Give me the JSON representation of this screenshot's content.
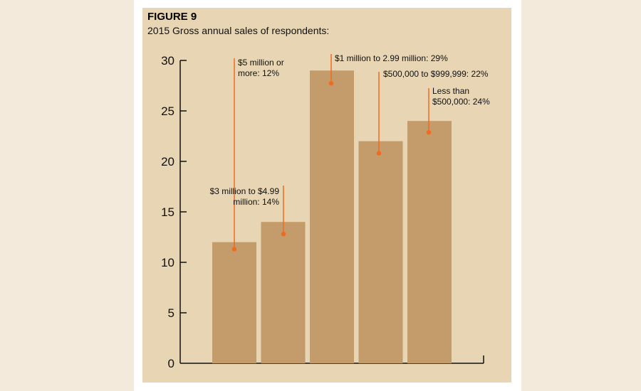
{
  "figure": {
    "label": "FIGURE 9",
    "title": "2015 Gross annual sales of respondents:"
  },
  "chart_data": {
    "type": "bar",
    "title": "2015 Gross annual sales of respondents:",
    "xlabel": "",
    "ylabel": "",
    "ylim": [
      0,
      30
    ],
    "yticks": [
      0,
      5,
      10,
      15,
      20,
      25,
      30
    ],
    "grid": false,
    "categories": [
      "$5 million or more",
      "$3 million to $4.99 million",
      "$1 million to 2.99 million",
      "$500,000 to $999,999",
      "Less than $500,000"
    ],
    "values": [
      12,
      14,
      29,
      22,
      24
    ],
    "annotations": [
      {
        "lines": [
          "$5 million or",
          "more: 12%"
        ],
        "align": "start"
      },
      {
        "lines": [
          "$3 million to $4.99",
          "million: 14%"
        ],
        "align": "end"
      },
      {
        "lines": [
          "$1 million to 2.99 million: 29%"
        ],
        "align": "start"
      },
      {
        "lines": [
          "$500,000 to $999,999: 22%"
        ],
        "align": "start"
      },
      {
        "lines": [
          "Less than",
          "$500,000: 24%"
        ],
        "align": "start"
      }
    ],
    "colors": {
      "bar": "#c49b6b",
      "leader": "#ef6b1f",
      "axis": "#111111",
      "background": "#e7d5b3"
    }
  }
}
